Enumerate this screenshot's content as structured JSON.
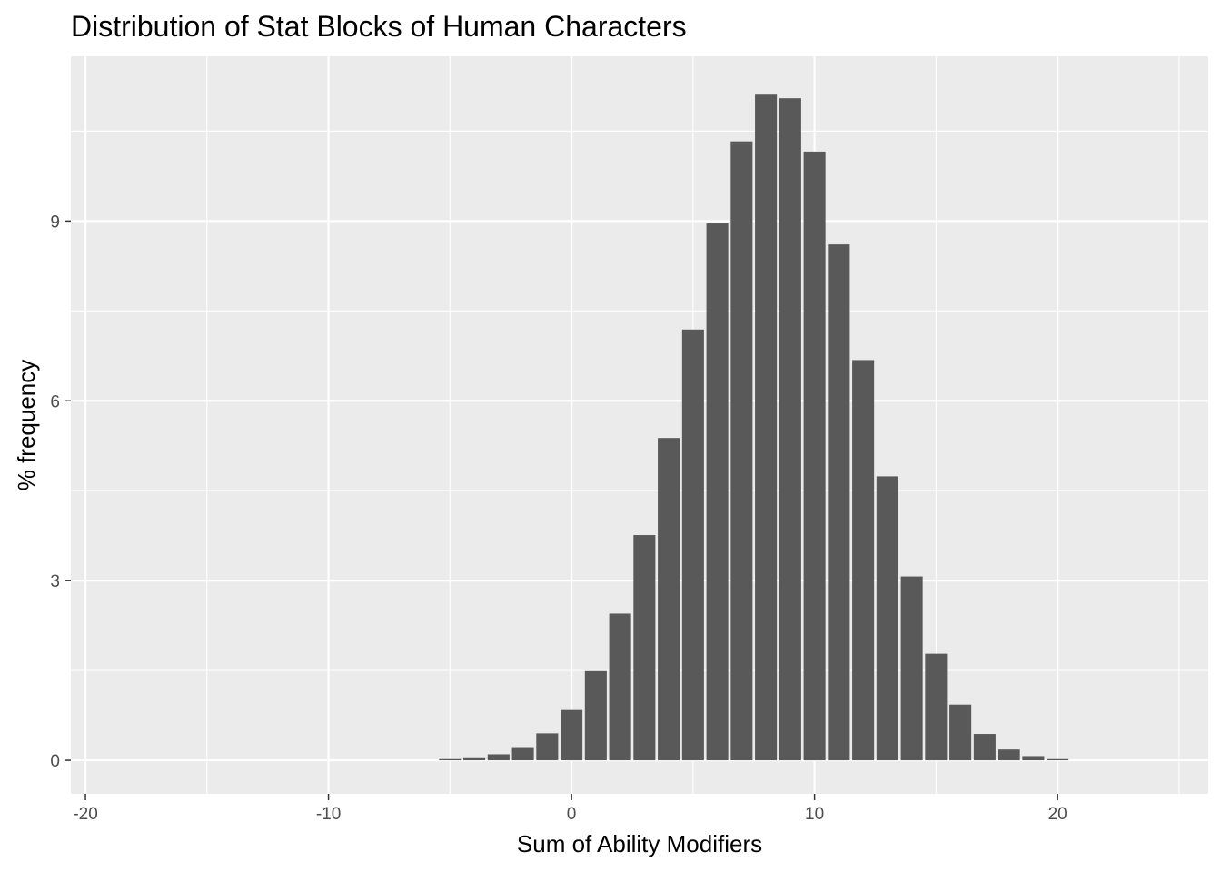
{
  "chart_data": {
    "type": "bar",
    "title": "Distribution of Stat Blocks of Human Characters",
    "xlabel": "Sum of Ability Modifiers",
    "ylabel": "% frequency",
    "xlim": [
      -20.6,
      26.2
    ],
    "ylim": [
      -0.56,
      11.75
    ],
    "x_ticks": [
      -20,
      -10,
      0,
      10,
      20
    ],
    "x_tick_labels": [
      "-20",
      "-10",
      "0",
      "10",
      "20"
    ],
    "y_ticks": [
      0,
      3,
      6,
      9
    ],
    "y_tick_labels": [
      "0",
      "3",
      "6",
      "9"
    ],
    "x_minor_gridlines": [
      -15,
      -5,
      5,
      15,
      25
    ],
    "y_minor_gridlines": [
      1.5,
      4.5,
      7.5,
      10.5
    ],
    "grid": true,
    "legend": "none",
    "colors": {
      "bar": "#595959",
      "panel": "#ebebeb",
      "grid": "#ffffff",
      "axis_text": "#4d4d4d",
      "tick": "#333333"
    },
    "x": [
      -5,
      -4,
      -3,
      -2,
      -1,
      0,
      1,
      2,
      3,
      4,
      5,
      6,
      7,
      8,
      9,
      10,
      11,
      12,
      13,
      14,
      15,
      16,
      17,
      18,
      19,
      20
    ],
    "values": [
      0.02,
      0.05,
      0.1,
      0.22,
      0.45,
      0.84,
      1.49,
      2.45,
      3.76,
      5.38,
      7.19,
      8.96,
      10.33,
      11.11,
      11.05,
      10.16,
      8.61,
      6.68,
      4.74,
      3.07,
      1.78,
      0.93,
      0.44,
      0.18,
      0.07,
      0.02
    ]
  }
}
